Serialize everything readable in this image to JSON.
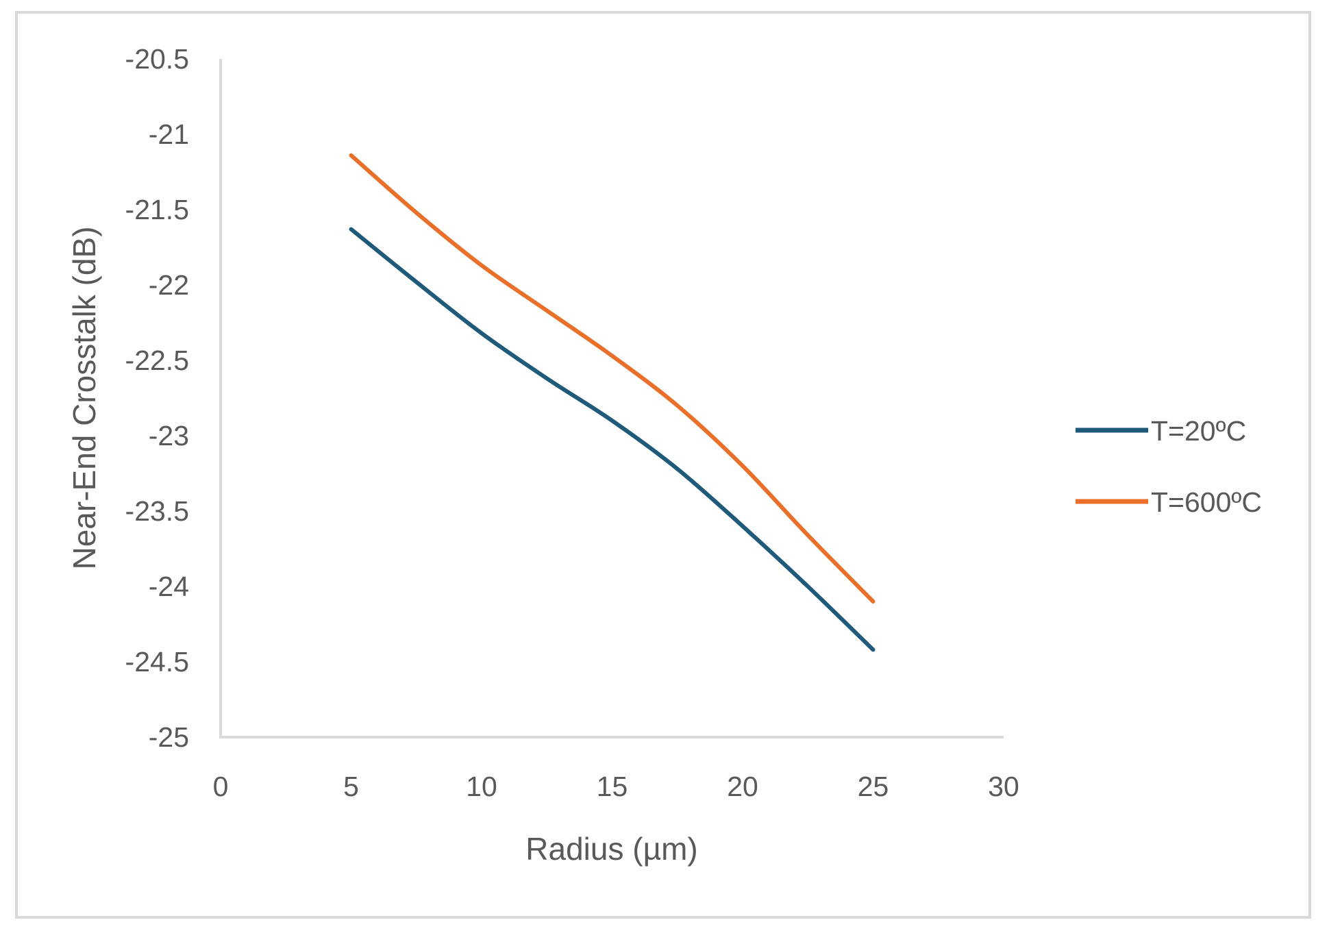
{
  "chart_data": {
    "type": "line",
    "title": "",
    "xlabel": "Radius (µm)",
    "ylabel": "Near-End Crosstalk (dB)",
    "xlim": [
      0,
      30
    ],
    "ylim": [
      -25,
      -20.5
    ],
    "x_ticks": [
      "0",
      "5",
      "10",
      "15",
      "20",
      "25",
      "30"
    ],
    "y_ticks": [
      "-20.5",
      "-21",
      "-21.5",
      "-22",
      "-22.5",
      "-23",
      "-23.5",
      "-24",
      "-24.5",
      "-25"
    ],
    "grid": false,
    "legend_position": "right",
    "x": [
      5,
      7.5,
      10,
      12.5,
      15,
      17.5,
      20,
      22.5,
      25
    ],
    "series": [
      {
        "name": "T=20ºC",
        "color": "#1f5a7a",
        "values": [
          -21.63,
          -21.98,
          -22.32,
          -22.62,
          -22.9,
          -23.22,
          -23.6,
          -24.0,
          -24.42
        ]
      },
      {
        "name": "T=600ºC",
        "color": "#e8702a",
        "values": [
          -21.14,
          -21.52,
          -21.87,
          -22.17,
          -22.47,
          -22.8,
          -23.2,
          -23.66,
          -24.1
        ]
      }
    ]
  }
}
